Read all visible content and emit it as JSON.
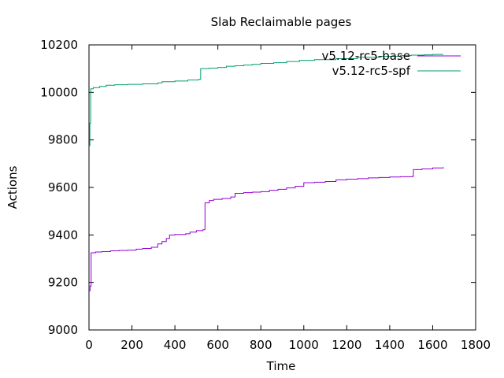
{
  "chart_data": {
    "type": "line",
    "title": "Slab Reclaimable pages",
    "xlabel": "Time",
    "ylabel": "Actions",
    "xlim": [
      0,
      1800
    ],
    "ylim": [
      9000,
      10200
    ],
    "xticks": [
      0,
      200,
      400,
      600,
      800,
      1000,
      1200,
      1400,
      1600,
      1800
    ],
    "yticks": [
      9000,
      9200,
      9400,
      9600,
      9800,
      10000,
      10200
    ],
    "grid": false,
    "legend_position": "top-right",
    "series": [
      {
        "name": "v5.12-rc5-base",
        "color": "#9400d3",
        "points": [
          [
            0,
            9165
          ],
          [
            5,
            9185
          ],
          [
            10,
            9325
          ],
          [
            30,
            9328
          ],
          [
            60,
            9330
          ],
          [
            100,
            9333
          ],
          [
            140,
            9335
          ],
          [
            180,
            9336
          ],
          [
            220,
            9340
          ],
          [
            250,
            9343
          ],
          [
            290,
            9348
          ],
          [
            320,
            9362
          ],
          [
            340,
            9372
          ],
          [
            360,
            9385
          ],
          [
            375,
            9400
          ],
          [
            400,
            9402
          ],
          [
            450,
            9405
          ],
          [
            470,
            9412
          ],
          [
            500,
            9418
          ],
          [
            530,
            9422
          ],
          [
            540,
            9535
          ],
          [
            560,
            9545
          ],
          [
            580,
            9550
          ],
          [
            620,
            9553
          ],
          [
            660,
            9560
          ],
          [
            680,
            9575
          ],
          [
            720,
            9578
          ],
          [
            760,
            9580
          ],
          [
            800,
            9582
          ],
          [
            840,
            9588
          ],
          [
            880,
            9592
          ],
          [
            920,
            9598
          ],
          [
            960,
            9605
          ],
          [
            1000,
            9620
          ],
          [
            1050,
            9622
          ],
          [
            1100,
            9625
          ],
          [
            1150,
            9632
          ],
          [
            1200,
            9635
          ],
          [
            1250,
            9637
          ],
          [
            1300,
            9640
          ],
          [
            1350,
            9642
          ],
          [
            1400,
            9644
          ],
          [
            1450,
            9645
          ],
          [
            1505,
            9646
          ],
          [
            1510,
            9675
          ],
          [
            1550,
            9678
          ],
          [
            1600,
            9682
          ],
          [
            1650,
            9685
          ]
        ]
      },
      {
        "name": "v5.12-rc5-spf",
        "color": "#009e73",
        "points": [
          [
            0,
            9775
          ],
          [
            4,
            9870
          ],
          [
            8,
            10015
          ],
          [
            20,
            10020
          ],
          [
            50,
            10025
          ],
          [
            80,
            10030
          ],
          [
            120,
            10032
          ],
          [
            180,
            10034
          ],
          [
            250,
            10036
          ],
          [
            320,
            10040
          ],
          [
            340,
            10045
          ],
          [
            400,
            10048
          ],
          [
            460,
            10052
          ],
          [
            510,
            10055
          ],
          [
            520,
            10100
          ],
          [
            560,
            10102
          ],
          [
            600,
            10105
          ],
          [
            640,
            10110
          ],
          [
            680,
            10112
          ],
          [
            720,
            10115
          ],
          [
            760,
            10118
          ],
          [
            800,
            10122
          ],
          [
            860,
            10125
          ],
          [
            920,
            10130
          ],
          [
            980,
            10135
          ],
          [
            1050,
            10138
          ],
          [
            1150,
            10142
          ],
          [
            1250,
            10148
          ],
          [
            1350,
            10152
          ],
          [
            1450,
            10155
          ],
          [
            1500,
            10157
          ],
          [
            1560,
            10158
          ],
          [
            1600,
            10160
          ],
          [
            1650,
            10160
          ]
        ]
      }
    ]
  }
}
